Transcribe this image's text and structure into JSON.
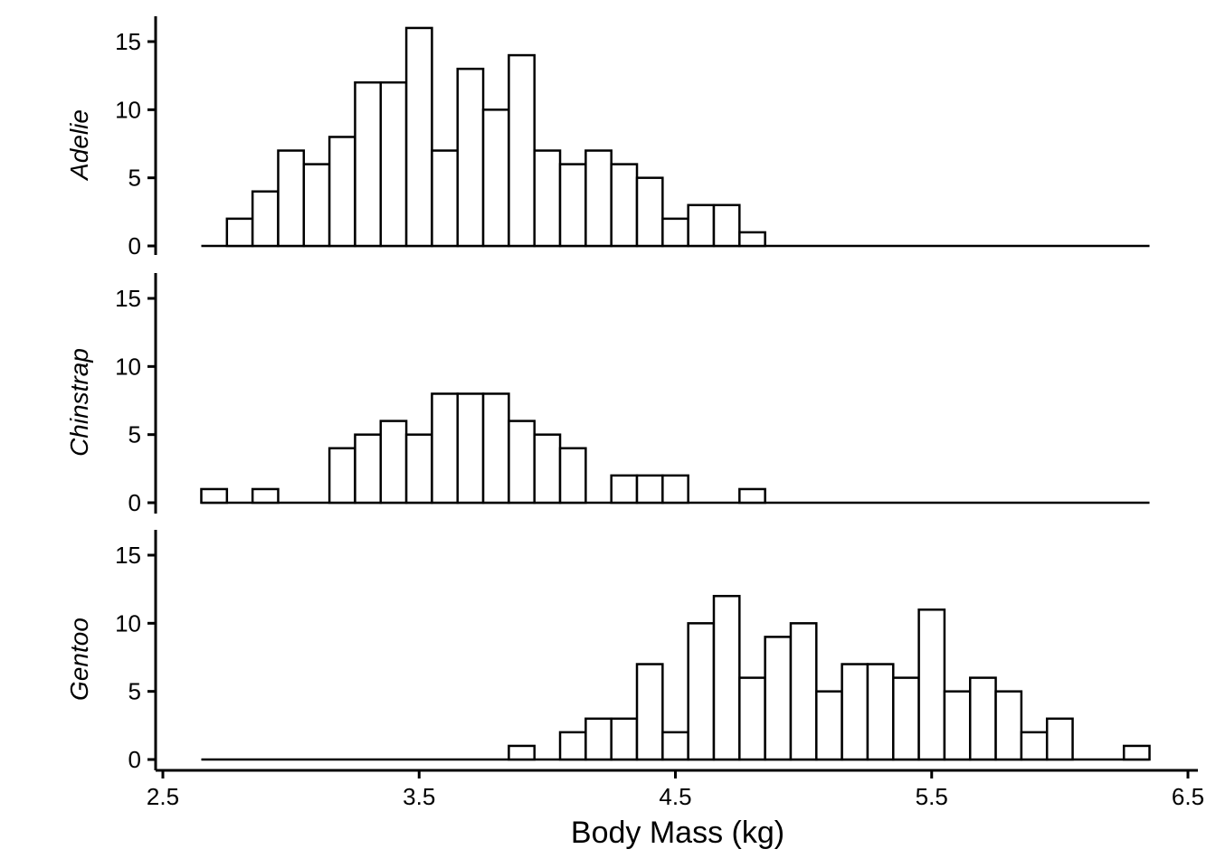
{
  "chart_data": {
    "type": "bar",
    "subtype": "faceted-histogram",
    "xlabel": "Body Mass (kg)",
    "ylabel": "",
    "xlim": [
      2.5,
      6.5
    ],
    "ylim": [
      0,
      16
    ],
    "x_ticks": [
      "2.5",
      "3.5",
      "4.5",
      "5.5",
      "6.5"
    ],
    "y_ticks": [
      "0",
      "5",
      "10",
      "15"
    ],
    "bin_width": 0.1,
    "bin_start": 2.65,
    "bar_fill": "#ffffff",
    "bar_stroke": "#000000",
    "grid": false,
    "series": [
      {
        "name": "Adelie",
        "counts": [
          0,
          2,
          4,
          7,
          6,
          8,
          12,
          12,
          16,
          7,
          13,
          10,
          14,
          7,
          6,
          7,
          6,
          5,
          2,
          3,
          3,
          1,
          0,
          0,
          0,
          0,
          0,
          0,
          0,
          0,
          0,
          0,
          0,
          0,
          0,
          0,
          0
        ]
      },
      {
        "name": "Chinstrap",
        "counts": [
          1,
          0,
          1,
          0,
          0,
          4,
          5,
          6,
          5,
          8,
          8,
          8,
          6,
          5,
          4,
          0,
          2,
          2,
          2,
          0,
          0,
          1,
          0,
          0,
          0,
          0,
          0,
          0,
          0,
          0,
          0,
          0,
          0,
          0,
          0,
          0,
          0
        ]
      },
      {
        "name": "Gentoo",
        "counts": [
          0,
          0,
          0,
          0,
          0,
          0,
          0,
          0,
          0,
          0,
          0,
          0,
          1,
          0,
          2,
          3,
          3,
          7,
          2,
          10,
          12,
          6,
          9,
          10,
          5,
          7,
          7,
          6,
          11,
          5,
          6,
          5,
          2,
          3,
          0,
          0,
          1
        ]
      }
    ]
  }
}
